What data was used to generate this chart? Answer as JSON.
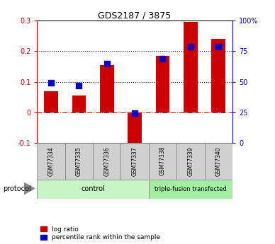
{
  "title": "GDS2187 / 3875",
  "samples": [
    "GSM77334",
    "GSM77335",
    "GSM77336",
    "GSM77337",
    "GSM77338",
    "GSM77339",
    "GSM77340"
  ],
  "log_ratio": [
    0.07,
    0.055,
    0.155,
    -0.105,
    0.185,
    0.295,
    0.24
  ],
  "percentile_rank_pct": [
    49,
    47,
    65,
    24.5,
    69,
    79,
    79
  ],
  "control_count": 4,
  "ylim_left": [
    -0.1,
    0.3
  ],
  "ylim_right": [
    0,
    100
  ],
  "yticks_left": [
    -0.1,
    0.0,
    0.1,
    0.2,
    0.3
  ],
  "ytick_labels_left": [
    "-0.1",
    "0",
    "0.1",
    "0.2",
    "0.3"
  ],
  "yticks_right": [
    0,
    25,
    50,
    75,
    100
  ],
  "ytick_labels_right": [
    "0",
    "25",
    "50",
    "75",
    "100%"
  ],
  "hlines": [
    0.1,
    0.2
  ],
  "bar_color": "#cc0000",
  "dot_color": "#0000cc",
  "zero_line_color": "#cc0000",
  "control_label": "control",
  "transfected_label": "triple-fusion transfected",
  "protocol_label": "protocol",
  "legend_log_ratio": "log ratio",
  "legend_percentile": "percentile rank within the sample",
  "control_bg": "#c8f5c8",
  "transfected_bg": "#a0f0a0",
  "sample_bg": "#d0d0d0",
  "bar_width": 0.5,
  "dot_size": 40
}
